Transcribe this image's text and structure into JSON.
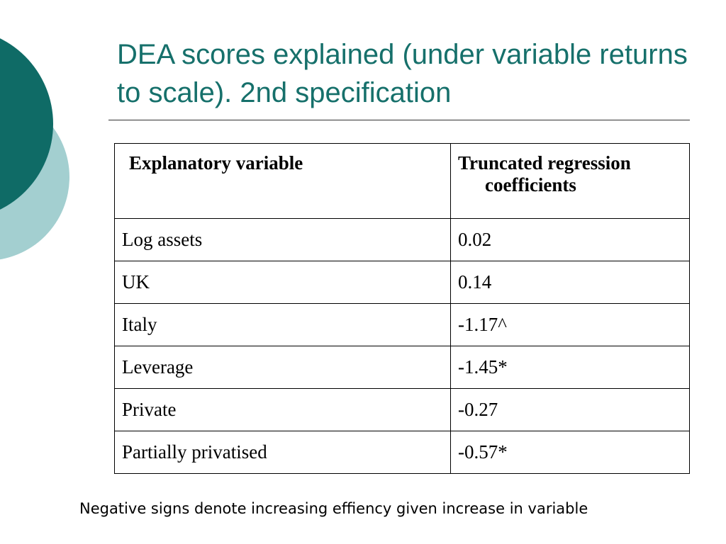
{
  "slide": {
    "title": "DEA scores explained (under variable returns to scale). 2nd specification",
    "footnote": "Negative signs denote increasing effiency given increase in variable",
    "colors": {
      "title": "#16706b",
      "decor_dark": "#0f6b66",
      "decor_light": "#a3cfd0"
    }
  },
  "table": {
    "headers": {
      "variable": "Explanatory variable",
      "coefficient_line1": "Truncated regression",
      "coefficient_line2": "coefficients"
    },
    "rows": [
      {
        "variable": "Log assets",
        "coefficient": "0.02"
      },
      {
        "variable": "UK",
        "coefficient": "0.14"
      },
      {
        "variable": "Italy",
        "coefficient": "-1.17^"
      },
      {
        "variable": "Leverage",
        "coefficient": "-1.45*"
      },
      {
        "variable": "Private",
        "coefficient": "-0.27"
      },
      {
        "variable": "Partially privatised",
        "coefficient": "-0.57*"
      }
    ]
  }
}
